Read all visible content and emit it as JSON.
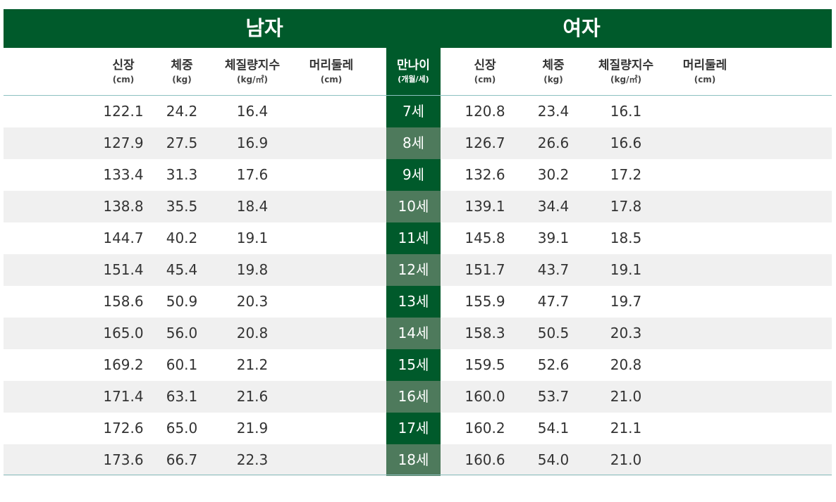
{
  "header": {
    "male": "남자",
    "female": "여자",
    "male_cols": [
      {
        "title": "신장",
        "unit": "(cm)"
      },
      {
        "title": "체중",
        "unit": "(kg)"
      },
      {
        "title": "체질량지수",
        "unit": "(kg/㎡)"
      },
      {
        "title": "머리둘레",
        "unit": "(cm)"
      }
    ],
    "age_col": {
      "title": "만나이",
      "unit": "(개월/세)"
    },
    "female_cols": [
      {
        "title": "신장",
        "unit": "(cm)"
      },
      {
        "title": "체중",
        "unit": "(kg)"
      },
      {
        "title": "체질량지수",
        "unit": "(kg/㎡)"
      },
      {
        "title": "머리둘레",
        "unit": "(cm)"
      }
    ]
  },
  "rows": [
    {
      "age": "7세",
      "m_height": "122.1",
      "m_weight": "24.2",
      "m_bmi": "16.4",
      "m_head": "",
      "f_height": "120.8",
      "f_weight": "23.4",
      "f_bmi": "16.1",
      "f_head": ""
    },
    {
      "age": "8세",
      "m_height": "127.9",
      "m_weight": "27.5",
      "m_bmi": "16.9",
      "m_head": "",
      "f_height": "126.7",
      "f_weight": "26.6",
      "f_bmi": "16.6",
      "f_head": ""
    },
    {
      "age": "9세",
      "m_height": "133.4",
      "m_weight": "31.3",
      "m_bmi": "17.6",
      "m_head": "",
      "f_height": "132.6",
      "f_weight": "30.2",
      "f_bmi": "17.2",
      "f_head": ""
    },
    {
      "age": "10세",
      "m_height": "138.8",
      "m_weight": "35.5",
      "m_bmi": "18.4",
      "m_head": "",
      "f_height": "139.1",
      "f_weight": "34.4",
      "f_bmi": "17.8",
      "f_head": ""
    },
    {
      "age": "11세",
      "m_height": "144.7",
      "m_weight": "40.2",
      "m_bmi": "19.1",
      "m_head": "",
      "f_height": "145.8",
      "f_weight": "39.1",
      "f_bmi": "18.5",
      "f_head": ""
    },
    {
      "age": "12세",
      "m_height": "151.4",
      "m_weight": "45.4",
      "m_bmi": "19.8",
      "m_head": "",
      "f_height": "151.7",
      "f_weight": "43.7",
      "f_bmi": "19.1",
      "f_head": ""
    },
    {
      "age": "13세",
      "m_height": "158.6",
      "m_weight": "50.9",
      "m_bmi": "20.3",
      "m_head": "",
      "f_height": "155.9",
      "f_weight": "47.7",
      "f_bmi": "19.7",
      "f_head": ""
    },
    {
      "age": "14세",
      "m_height": "165.0",
      "m_weight": "56.0",
      "m_bmi": "20.8",
      "m_head": "",
      "f_height": "158.3",
      "f_weight": "50.5",
      "f_bmi": "20.3",
      "f_head": ""
    },
    {
      "age": "15세",
      "m_height": "169.2",
      "m_weight": "60.1",
      "m_bmi": "21.2",
      "m_head": "",
      "f_height": "159.5",
      "f_weight": "52.6",
      "f_bmi": "20.8",
      "f_head": ""
    },
    {
      "age": "16세",
      "m_height": "171.4",
      "m_weight": "63.1",
      "m_bmi": "21.6",
      "m_head": "",
      "f_height": "160.0",
      "f_weight": "53.7",
      "f_bmi": "21.0",
      "f_head": ""
    },
    {
      "age": "17세",
      "m_height": "172.6",
      "m_weight": "65.0",
      "m_bmi": "21.9",
      "m_head": "",
      "f_height": "160.2",
      "f_weight": "54.1",
      "f_bmi": "21.1",
      "f_head": ""
    },
    {
      "age": "18세",
      "m_height": "173.6",
      "m_weight": "66.7",
      "m_bmi": "22.3",
      "m_head": "",
      "f_height": "160.6",
      "f_weight": "54.0",
      "f_bmi": "21.0",
      "f_head": ""
    }
  ],
  "colors": {
    "green": "#005a2b",
    "green_alt": "#4e7a5c",
    "stripe": "#f0f0f0",
    "line": "#8cc0c0"
  }
}
